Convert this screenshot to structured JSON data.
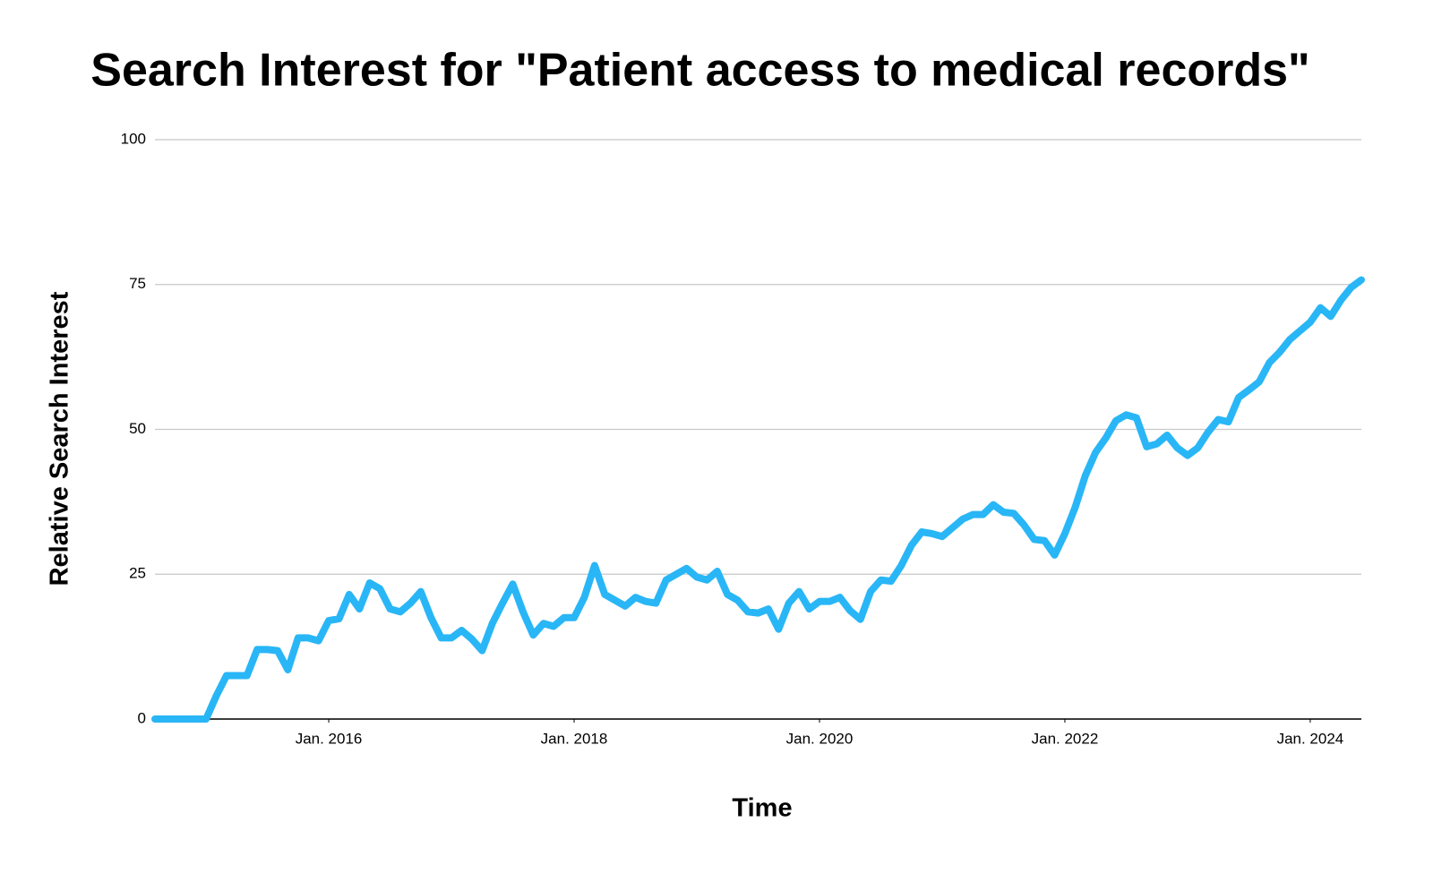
{
  "chart_data": {
    "type": "line",
    "title": "Search Interest for \"Patient access to medical records\"",
    "x_label": "Time",
    "y_label": "Relative Search Interest",
    "color": "#29b6f6",
    "grid": true,
    "x": [
      "2014-08",
      "2014-09",
      "2014-10",
      "2014-11",
      "2014-12",
      "2015-01",
      "2015-02",
      "2015-03",
      "2015-04",
      "2015-05",
      "2015-06",
      "2015-07",
      "2015-08",
      "2015-09",
      "2015-10",
      "2015-11",
      "2015-12",
      "2016-01",
      "2016-02",
      "2016-03",
      "2016-04",
      "2016-05",
      "2016-06",
      "2016-07",
      "2016-08",
      "2016-09",
      "2016-10",
      "2016-11",
      "2016-12",
      "2017-01",
      "2017-02",
      "2017-03",
      "2017-04",
      "2017-05",
      "2017-06",
      "2017-07",
      "2017-08",
      "2017-09",
      "2017-10",
      "2017-11",
      "2017-12",
      "2018-01",
      "2018-02",
      "2018-03",
      "2018-04",
      "2018-05",
      "2018-06",
      "2018-07",
      "2018-08",
      "2018-09",
      "2018-10",
      "2018-11",
      "2018-12",
      "2019-01",
      "2019-02",
      "2019-03",
      "2019-04",
      "2019-05",
      "2019-06",
      "2019-07",
      "2019-08",
      "2019-09",
      "2019-10",
      "2019-11",
      "2019-12",
      "2020-01",
      "2020-02",
      "2020-03",
      "2020-04",
      "2020-05",
      "2020-06",
      "2020-07",
      "2020-08",
      "2020-09",
      "2020-10",
      "2020-11",
      "2020-12",
      "2021-01",
      "2021-02",
      "2021-03",
      "2021-04",
      "2021-05",
      "2021-06",
      "2021-07",
      "2021-08",
      "2021-09",
      "2021-10",
      "2021-11",
      "2021-12",
      "2022-01",
      "2022-02",
      "2022-03",
      "2022-04",
      "2022-05",
      "2022-06",
      "2022-07",
      "2022-08",
      "2022-09",
      "2022-10",
      "2022-11",
      "2022-12",
      "2023-01",
      "2023-02",
      "2023-03",
      "2023-04",
      "2023-05",
      "2023-06",
      "2023-07",
      "2023-08",
      "2023-09",
      "2023-10",
      "2023-11",
      "2023-12",
      "2024-01",
      "2024-02",
      "2024-03",
      "2024-04",
      "2024-05",
      "2024-06"
    ],
    "values": [
      0,
      0,
      0,
      0,
      0,
      0,
      4,
      7.5,
      7.5,
      7.5,
      12,
      12,
      11.8,
      8.5,
      14,
      14,
      13.5,
      17,
      17.3,
      21.5,
      19,
      23.5,
      22.5,
      19,
      18.5,
      20,
      22,
      17.5,
      14,
      14,
      15.3,
      13.8,
      11.8,
      16.5,
      20,
      23.3,
      18.5,
      14.5,
      16.5,
      16,
      17.5,
      17.5,
      21,
      26.5,
      21.5,
      20.5,
      19.5,
      21,
      20.3,
      20,
      24,
      25,
      26,
      24.5,
      24,
      25.5,
      21.5,
      20.5,
      18.5,
      18.3,
      19,
      15.5,
      20,
      22,
      19,
      20.3,
      20.3,
      21,
      18.7,
      17.2,
      22,
      24,
      23.8,
      26.5,
      30,
      32.3,
      32,
      31.5,
      33,
      34.5,
      35.3,
      35.3,
      37,
      35.7,
      35.5,
      33.5,
      31,
      30.8,
      28.3,
      32,
      36.5,
      42,
      46,
      48.5,
      51.5,
      52.5,
      52,
      47,
      47.5,
      49,
      46.8,
      45.5,
      46.8,
      49.5,
      51.7,
      51.3,
      55.5,
      56.8,
      58.2,
      61.5,
      63.3,
      65.5,
      67,
      68.5,
      71,
      69.5,
      72.3,
      74.5,
      75.8
    ],
    "xlim": [
      "2014-08",
      "2024-06"
    ],
    "xticks": [
      {
        "value": "2016-01",
        "label": "Jan. 2016"
      },
      {
        "value": "2018-01",
        "label": "Jan. 2018"
      },
      {
        "value": "2020-01",
        "label": "Jan. 2020"
      },
      {
        "value": "2022-01",
        "label": "Jan. 2022"
      },
      {
        "value": "2024-01",
        "label": "Jan. 2024"
      }
    ],
    "ylim": [
      0,
      100
    ],
    "yticks": [
      0,
      25,
      50,
      75,
      100
    ]
  }
}
